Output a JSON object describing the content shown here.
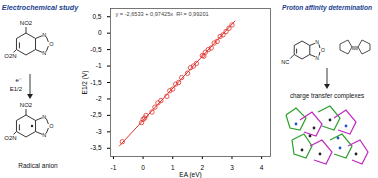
{
  "chart_data": {
    "type": "scatter",
    "xlabel": "EA (eV)",
    "ylabel": "E1/2 (V)",
    "annotations": [
      "y = -2,6533 + 0,97425x",
      "R² = 0,99201"
    ],
    "x": [
      -0.7,
      -0.05,
      0.0,
      0.05,
      0.1,
      0.3,
      0.4,
      0.5,
      0.6,
      0.8,
      0.9,
      1.0,
      1.1,
      1.2,
      1.3,
      1.5,
      1.6,
      1.7,
      1.8,
      2.0,
      2.05,
      2.1,
      2.2,
      2.3,
      2.4,
      2.5,
      2.6,
      2.7,
      2.8,
      2.9,
      3.0
    ],
    "values": [
      -3.3,
      -2.72,
      -2.62,
      -2.58,
      -2.5,
      -2.4,
      -2.25,
      -2.12,
      -2.05,
      -1.92,
      -1.75,
      -1.7,
      -1.55,
      -1.5,
      -1.35,
      -1.22,
      -1.05,
      -1.0,
      -0.92,
      -0.68,
      -0.7,
      -0.58,
      -0.5,
      -0.45,
      -0.3,
      -0.25,
      -0.1,
      -0.05,
      0.05,
      0.15,
      0.25
    ],
    "color": "#e0302a",
    "marker": "circle",
    "fit_line": {
      "x": [
        -0.8,
        3.1
      ],
      "values": [
        -3.43,
        0.37
      ],
      "color": "#e0302a",
      "line_style": "solid"
    },
    "xlim": [
      -1.1,
      4.3
    ],
    "xticks": [
      -1,
      0,
      1,
      2,
      3,
      4
    ],
    "ylim": [
      -3.75,
      0.75
    ],
    "yticks": [
      {
        "value": 0.5,
        "label": "0,5"
      },
      0,
      {
        "value": -0.5,
        "label": "-0,5"
      },
      -1,
      {
        "value": -1.5,
        "label": "-1,5"
      },
      -2,
      {
        "value": -2.5,
        "label": "-2,5"
      },
      -3,
      {
        "value": -3.5,
        "label": "-3,5"
      }
    ],
    "grid": false
  },
  "left_panel": {
    "title": "Electrochemical study",
    "top_labels": [
      "NO2",
      "O2N",
      "N",
      "O",
      "N"
    ],
    "reduction": [
      "e⁻",
      "E1/2"
    ],
    "bottom_labels": [
      "NO2",
      "O2N",
      "N",
      "O",
      "N"
    ],
    "caption": "Radical anion"
  },
  "right_panel": {
    "title": "Proton affinity determination",
    "molecule_labels": [
      "NC",
      "N",
      "O",
      "N"
    ],
    "caption": "charge transfer complexes"
  }
}
